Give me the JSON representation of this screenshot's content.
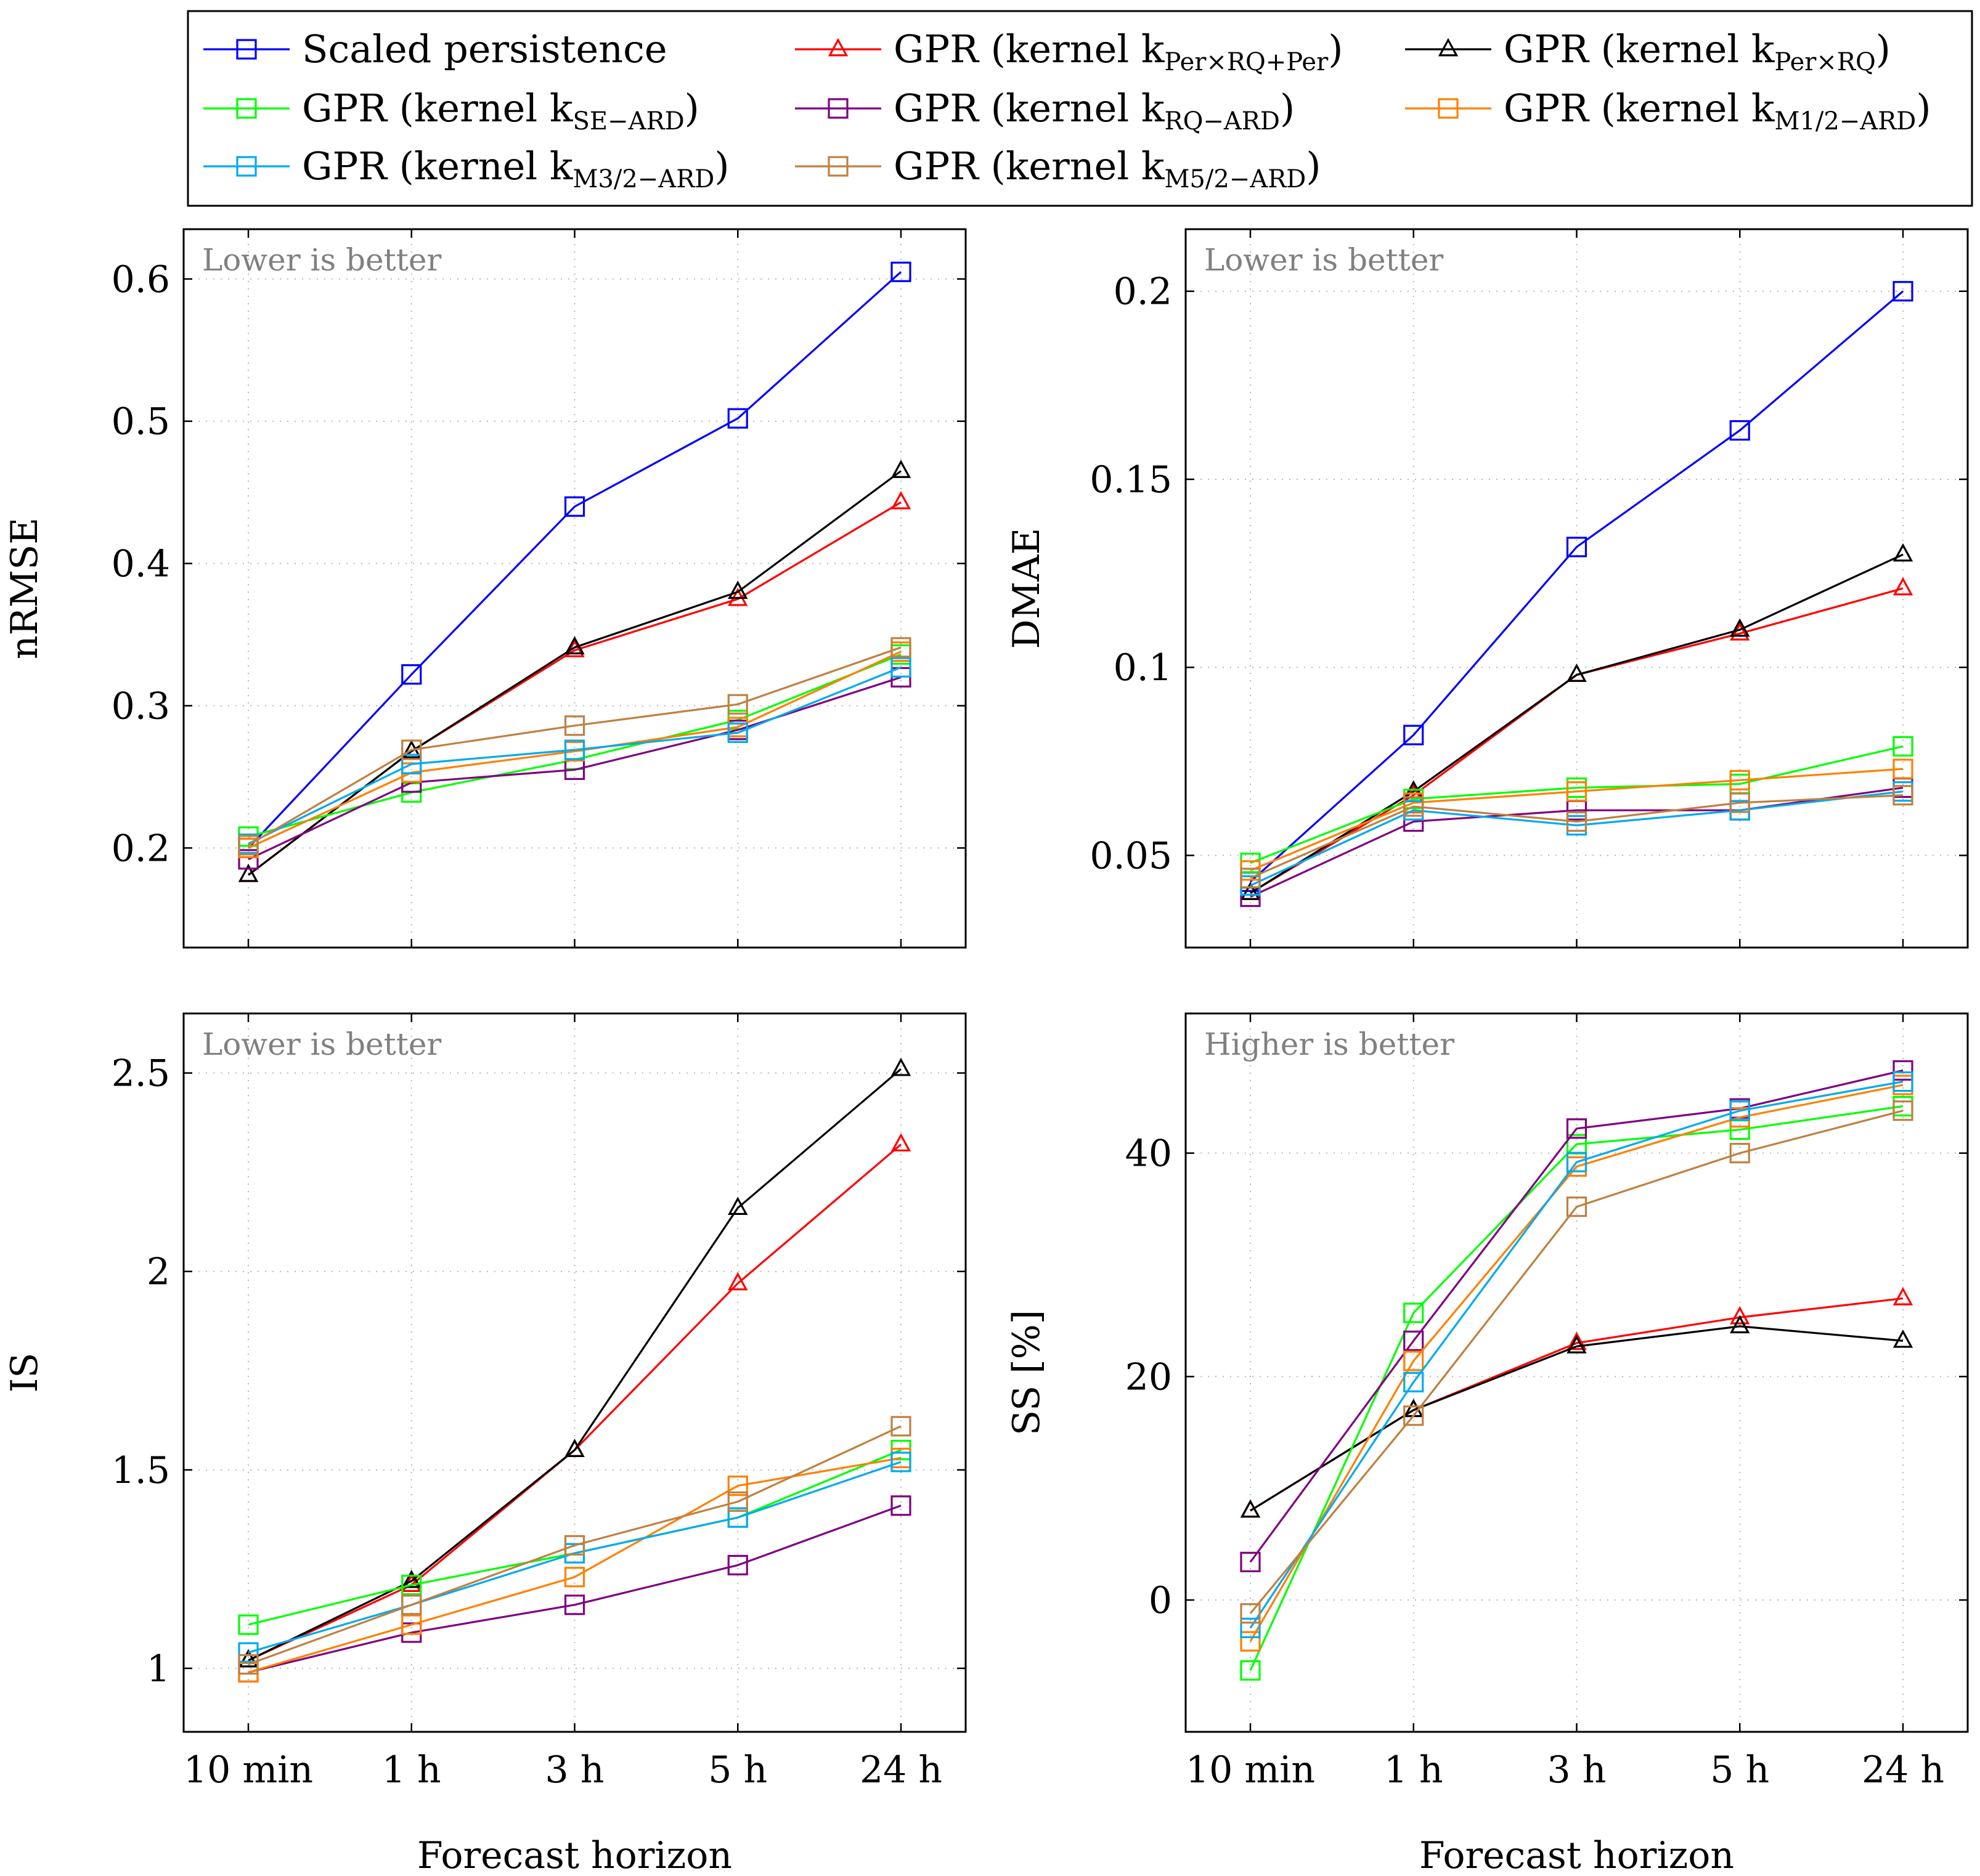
{
  "chart_data": [
    {
      "type": "line",
      "id": "nrmse",
      "ylabel": "nRMSE",
      "xlabel": "",
      "annotation": "Lower is better",
      "categories": [
        "10 min",
        "1 h",
        "3 h",
        "5 h",
        "24 h"
      ],
      "ylim": [
        0.13,
        0.635
      ],
      "yticks": [
        0.2,
        0.3,
        0.4,
        0.5,
        0.6
      ],
      "ytick_labels": [
        "0.2",
        "0.3",
        "0.4",
        "0.5",
        "0.6"
      ],
      "grid": true,
      "series": [
        {
          "key": "persistence",
          "values": [
            0.2,
            0.322,
            0.44,
            0.502,
            0.605
          ]
        },
        {
          "key": "perrqper",
          "values": [
            0.181,
            0.268,
            0.339,
            0.375,
            0.443
          ]
        },
        {
          "key": "perrq",
          "values": [
            0.181,
            0.268,
            0.341,
            0.38,
            0.465
          ]
        },
        {
          "key": "se",
          "values": [
            0.208,
            0.239,
            0.262,
            0.29,
            0.336
          ]
        },
        {
          "key": "rq",
          "values": [
            0.192,
            0.246,
            0.255,
            0.283,
            0.32
          ]
        },
        {
          "key": "m12",
          "values": [
            0.2,
            0.253,
            0.268,
            0.285,
            0.338
          ]
        },
        {
          "key": "m32",
          "values": [
            0.203,
            0.259,
            0.269,
            0.281,
            0.327
          ]
        },
        {
          "key": "m52",
          "values": [
            0.202,
            0.269,
            0.286,
            0.301,
            0.341
          ]
        }
      ]
    },
    {
      "type": "line",
      "id": "dmae",
      "ylabel": "DMAE",
      "xlabel": "",
      "annotation": "Lower is better",
      "categories": [
        "10 min",
        "1 h",
        "3 h",
        "5 h",
        "24 h"
      ],
      "ylim": [
        0.0255,
        0.2165
      ],
      "yticks": [
        0.05,
        0.1,
        0.15,
        0.2
      ],
      "ytick_labels": [
        "0.05",
        "0.1",
        "0.15",
        "0.2"
      ],
      "grid": true,
      "series": [
        {
          "key": "persistence",
          "values": [
            0.043,
            0.082,
            0.132,
            0.163,
            0.2
          ]
        },
        {
          "key": "perrqper",
          "values": [
            0.04,
            0.066,
            0.098,
            0.109,
            0.121
          ]
        },
        {
          "key": "perrq",
          "values": [
            0.04,
            0.067,
            0.098,
            0.11,
            0.13
          ]
        },
        {
          "key": "se",
          "values": [
            0.048,
            0.065,
            0.068,
            0.069,
            0.079
          ]
        },
        {
          "key": "rq",
          "values": [
            0.039,
            0.059,
            0.062,
            0.062,
            0.068
          ]
        },
        {
          "key": "m12",
          "values": [
            0.046,
            0.064,
            0.067,
            0.07,
            0.073
          ]
        },
        {
          "key": "m32",
          "values": [
            0.042,
            0.062,
            0.058,
            0.062,
            0.067
          ]
        },
        {
          "key": "m52",
          "values": [
            0.044,
            0.063,
            0.059,
            0.064,
            0.066
          ]
        }
      ]
    },
    {
      "type": "line",
      "id": "is",
      "ylabel": "IS",
      "xlabel": "Forecast horizon",
      "annotation": "Lower is better",
      "categories": [
        "10 min",
        "1 h",
        "3 h",
        "5 h",
        "24 h"
      ],
      "ylim": [
        0.84,
        2.65
      ],
      "yticks": [
        1,
        1.5,
        2,
        2.5
      ],
      "ytick_labels": [
        "1",
        "1.5",
        "2",
        "2.5"
      ],
      "grid": true,
      "series": [
        {
          "key": "perrqper",
          "values": [
            1.02,
            1.21,
            1.55,
            1.97,
            2.32
          ]
        },
        {
          "key": "perrq",
          "values": [
            1.02,
            1.22,
            1.55,
            2.16,
            2.51
          ]
        },
        {
          "key": "se",
          "values": [
            1.11,
            1.21,
            1.29,
            1.38,
            1.55
          ]
        },
        {
          "key": "rq",
          "values": [
            0.99,
            1.09,
            1.16,
            1.26,
            1.41
          ]
        },
        {
          "key": "m12",
          "values": [
            0.99,
            1.11,
            1.23,
            1.46,
            1.53
          ]
        },
        {
          "key": "m32",
          "values": [
            1.04,
            1.16,
            1.29,
            1.38,
            1.52
          ]
        },
        {
          "key": "m52",
          "values": [
            1.01,
            1.16,
            1.31,
            1.42,
            1.61
          ]
        }
      ]
    },
    {
      "type": "line",
      "id": "ss",
      "ylabel": "SS [%]",
      "xlabel": "Forecast horizon",
      "annotation": "Higher is better",
      "categories": [
        "10 min",
        "1 h",
        "3 h",
        "5 h",
        "24 h"
      ],
      "ylim": [
        -11.8,
        52.5
      ],
      "yticks": [
        0,
        20,
        40
      ],
      "ytick_labels": [
        "0",
        "20",
        "40"
      ],
      "grid": true,
      "series": [
        {
          "key": "perrqper",
          "values": [
            8,
            17,
            23,
            25.3,
            27
          ]
        },
        {
          "key": "perrq",
          "values": [
            8,
            17,
            22.7,
            24.5,
            23.2
          ]
        },
        {
          "key": "se",
          "values": [
            -6.3,
            25.7,
            40.8,
            42.1,
            44.2
          ]
        },
        {
          "key": "rq",
          "values": [
            3.4,
            23.2,
            42.2,
            44,
            47.4
          ]
        },
        {
          "key": "m12",
          "values": [
            -3.7,
            21.4,
            38.8,
            43.2,
            46.1
          ]
        },
        {
          "key": "m32",
          "values": [
            -2.5,
            19.5,
            39.2,
            43.8,
            46.4
          ]
        },
        {
          "key": "m52",
          "values": [
            -1.2,
            16.5,
            35.2,
            40,
            43.8
          ]
        }
      ]
    }
  ],
  "legend": [
    {
      "key": "persistence",
      "label": "Scaled persistence",
      "sub": "",
      "tail": "",
      "color": "#0000ff",
      "marker": "square"
    },
    {
      "key": "perrqper",
      "label": "GPR (kernel k",
      "sub": "Per×RQ+Per",
      "tail": ")",
      "color": "#ff0000",
      "marker": "triangle"
    },
    {
      "key": "perrq",
      "label": "GPR (kernel k",
      "sub": "Per×RQ",
      "tail": ")",
      "color": "#000000",
      "marker": "triangle"
    },
    {
      "key": "se",
      "label": "GPR (kernel k",
      "sub": "SE−ARD",
      "tail": ")",
      "color": "#00ff00",
      "marker": "square"
    },
    {
      "key": "rq",
      "label": "GPR (kernel k",
      "sub": "RQ−ARD",
      "tail": ")",
      "color": "#800080",
      "marker": "square"
    },
    {
      "key": "m12",
      "label": "GPR (kernel k",
      "sub": "M1/2−ARD",
      "tail": ")",
      "color": "#ff8000",
      "marker": "square"
    },
    {
      "key": "m32",
      "label": "GPR (kernel k",
      "sub": "M3/2−ARD",
      "tail": ")",
      "color": "#00aaee",
      "marker": "square"
    },
    {
      "key": "m52",
      "label": "GPR (kernel k",
      "sub": "M5/2−ARD",
      "tail": ")",
      "color": "#bf8040",
      "marker": "square"
    }
  ]
}
